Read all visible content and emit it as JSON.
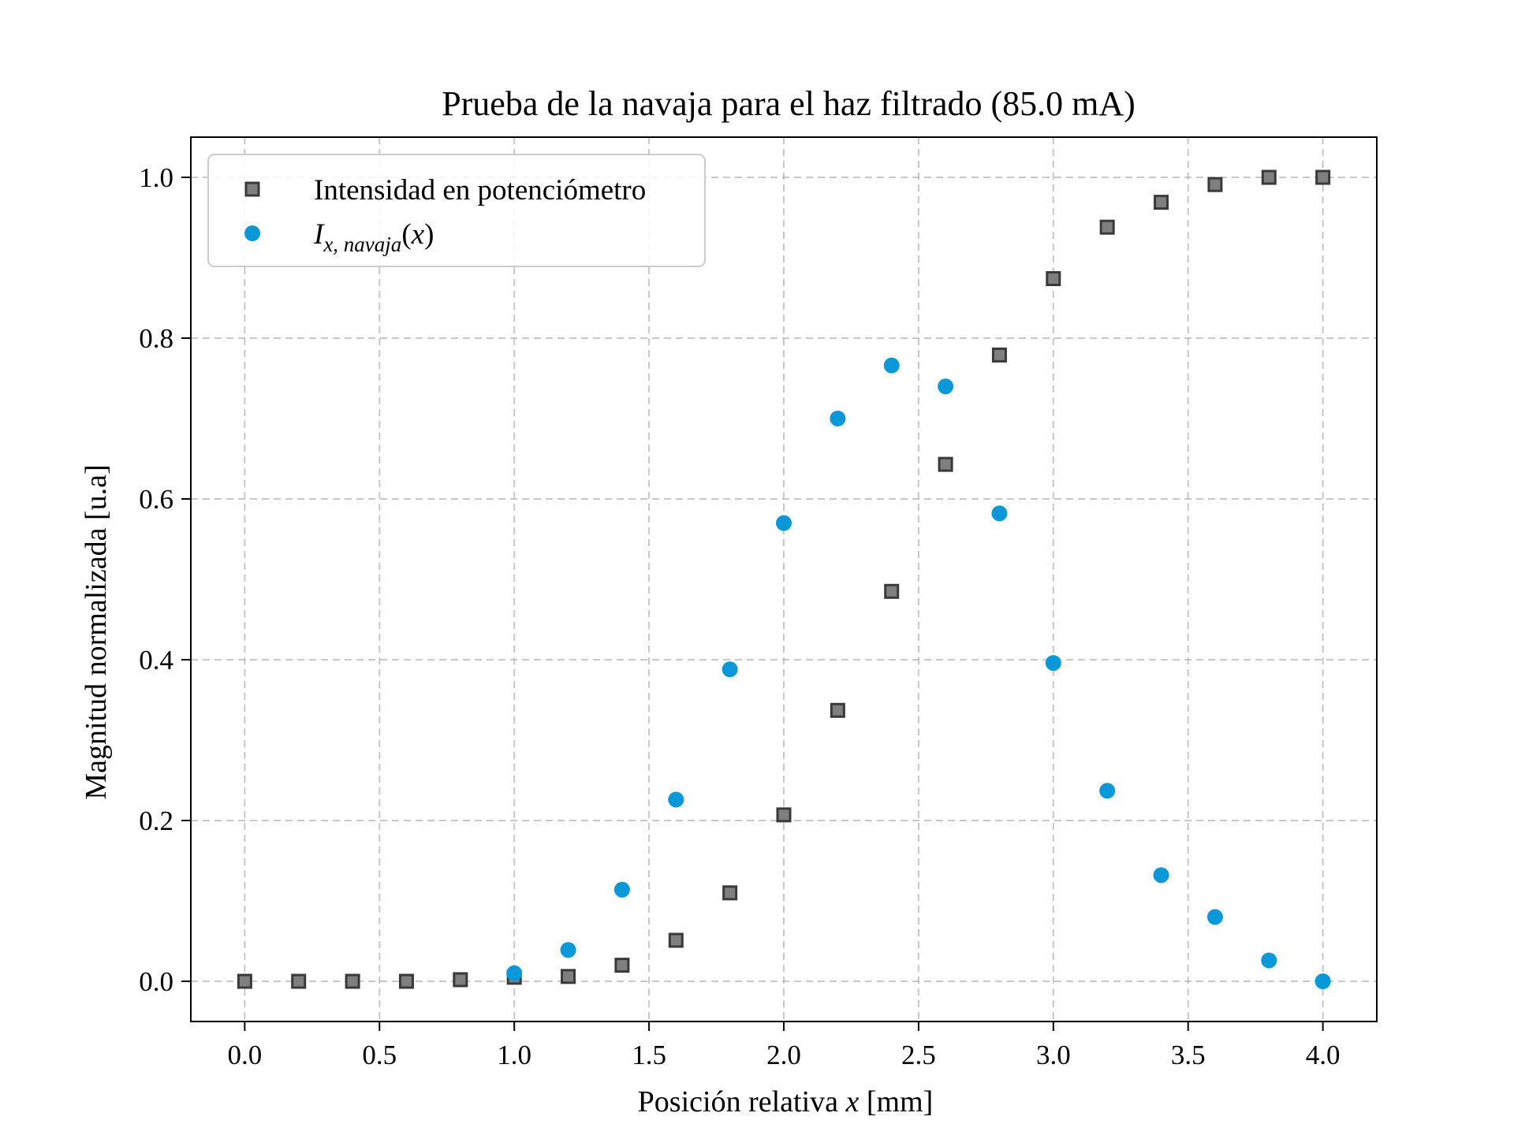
{
  "chart_data": {
    "type": "scatter",
    "title": "Prueba de la navaja para el haz filtrado (85.0 mA)",
    "xlabel": "Posición relativa x [mm]",
    "ylabel": "Magnitud normalizada [u.a]",
    "xlim": [
      -0.2,
      4.2
    ],
    "ylim": [
      -0.05,
      1.05
    ],
    "xticks": [
      0.0,
      0.5,
      1.0,
      1.5,
      2.0,
      2.5,
      3.0,
      3.5,
      4.0
    ],
    "xtick_labels": [
      "0.0",
      "0.5",
      "1.0",
      "1.5",
      "2.0",
      "2.5",
      "3.0",
      "3.5",
      "4.0"
    ],
    "yticks": [
      0.0,
      0.2,
      0.4,
      0.6,
      0.8,
      1.0
    ],
    "ytick_labels": [
      "0.0",
      "0.2",
      "0.4",
      "0.6",
      "0.8",
      "1.0"
    ],
    "grid": true,
    "legend_position": "top-left",
    "series": [
      {
        "name": "Intensidad en potenciómetro",
        "marker": "square",
        "color": "#7f7f7f",
        "edge_color": "#3a3a3a",
        "x": [
          0.0,
          0.2,
          0.4,
          0.6,
          0.8,
          1.0,
          1.2,
          1.4,
          1.6,
          1.8,
          2.0,
          2.2,
          2.4,
          2.6,
          2.8,
          3.0,
          3.2,
          3.4,
          3.6,
          3.8,
          4.0
        ],
        "y": [
          0.0,
          0.0,
          0.0,
          0.0,
          0.002,
          0.005,
          0.006,
          0.02,
          0.051,
          0.11,
          0.207,
          0.337,
          0.485,
          0.643,
          0.779,
          0.874,
          0.938,
          0.969,
          0.991,
          1.0,
          1.0
        ]
      },
      {
        "name": "I_{x, navaja}(x)",
        "name_parts": {
          "base": "I",
          "sub": "x, navaja",
          "arg": "(x)"
        },
        "marker": "circle",
        "color": "#0a98d8",
        "x": [
          1.0,
          1.2,
          1.4,
          1.6,
          1.8,
          2.0,
          2.2,
          2.4,
          2.6,
          2.8,
          3.0,
          3.2,
          3.4,
          3.6,
          3.8,
          4.0
        ],
        "y": [
          0.01,
          0.039,
          0.114,
          0.226,
          0.388,
          0.57,
          0.7,
          0.766,
          0.74,
          0.582,
          0.396,
          0.237,
          0.132,
          0.08,
          0.026,
          0.0
        ]
      }
    ]
  }
}
